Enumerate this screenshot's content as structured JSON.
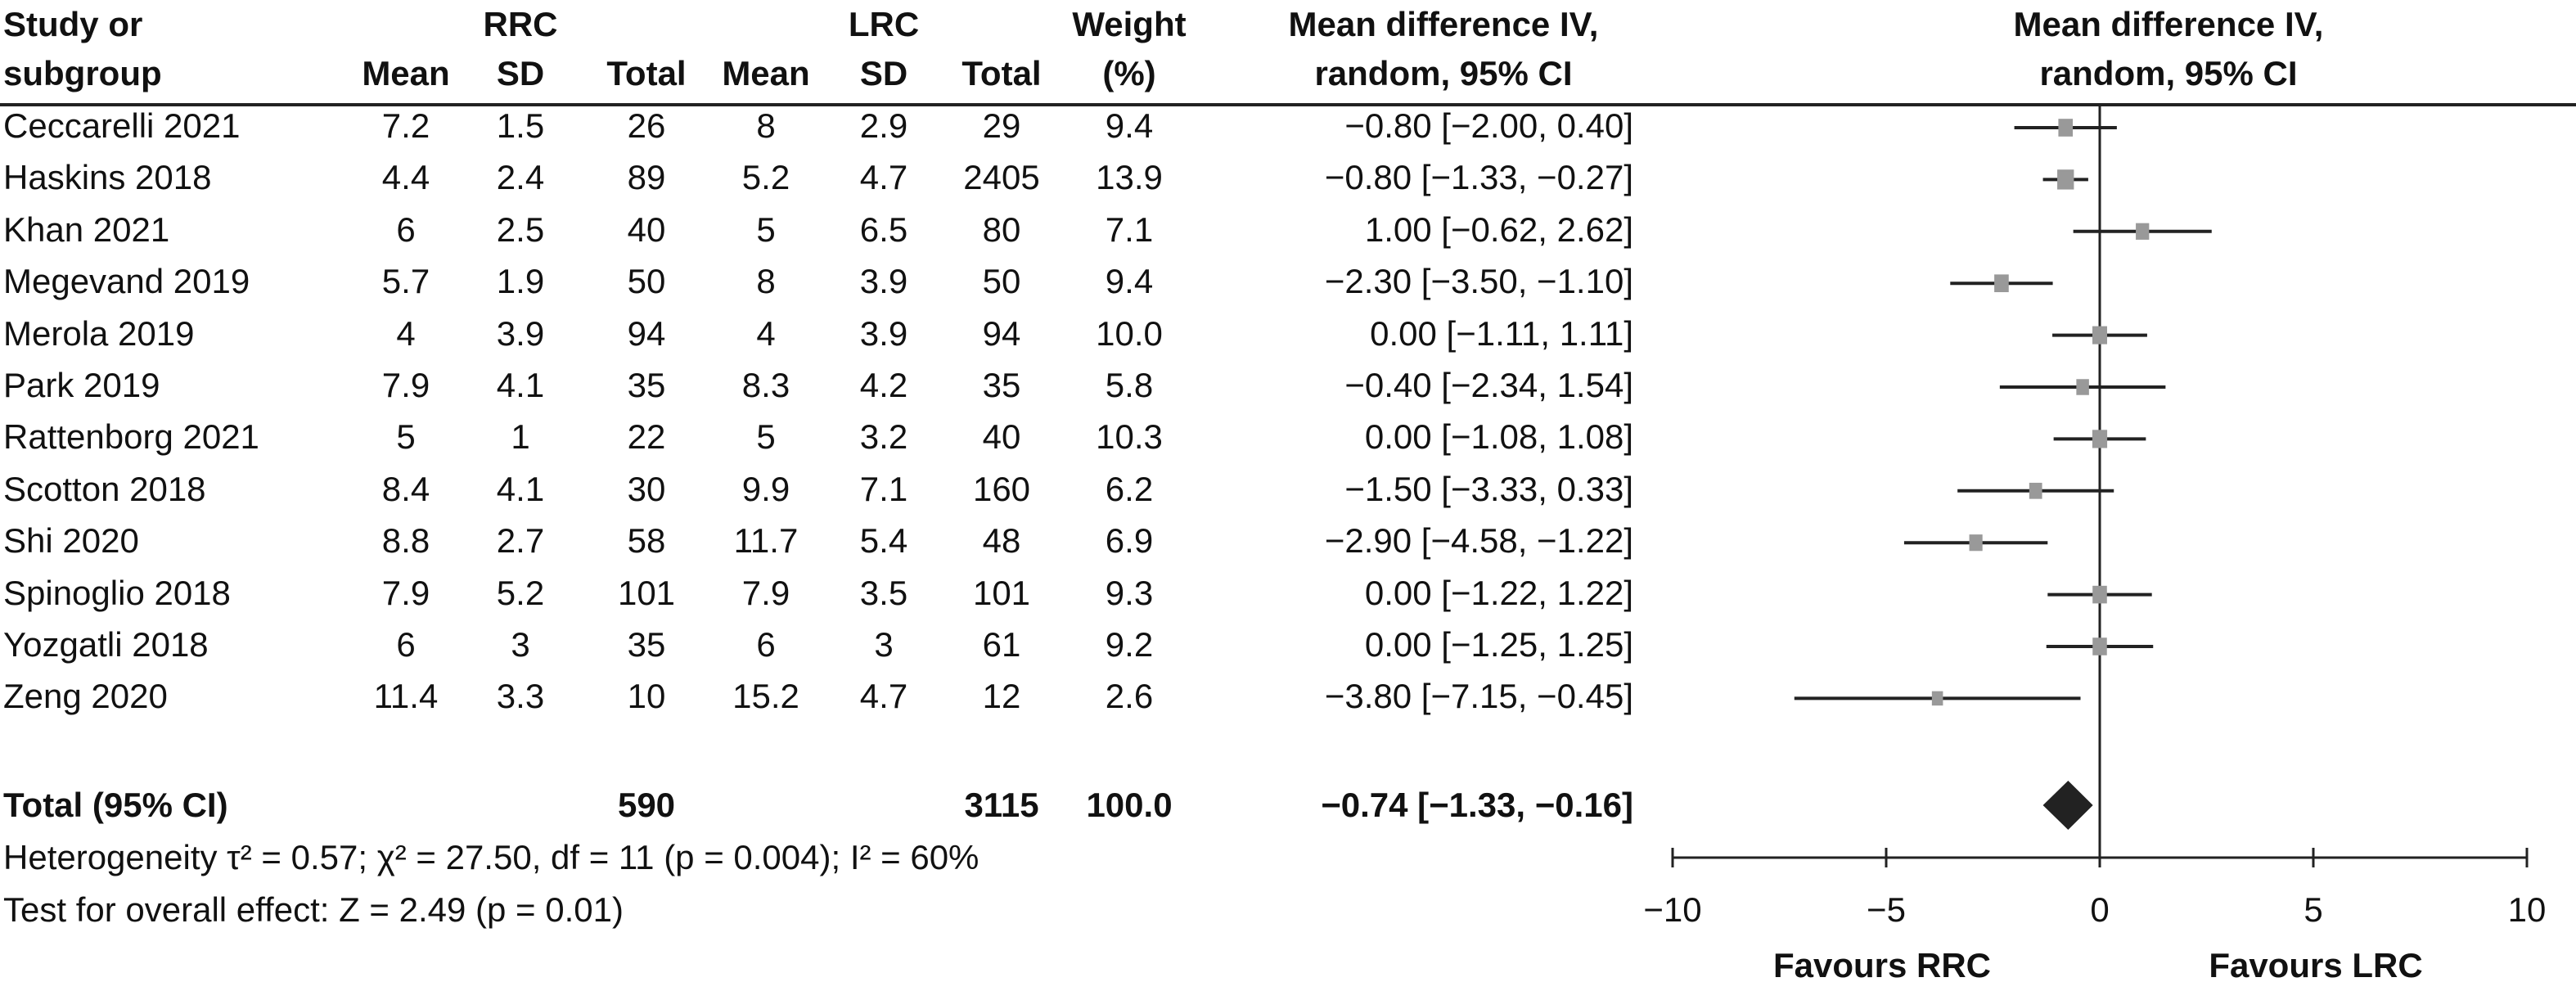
{
  "header": {
    "study_1": "Study or",
    "study_2": "subgroup",
    "rrc": "RRC",
    "lrc": "LRC",
    "mean": "Mean",
    "sd": "SD",
    "total": "Total",
    "weight_1": "Weight",
    "weight_2": "(%)",
    "md_1": "Mean difference IV,",
    "md_2": "random, 95% CI",
    "plot_1": "Mean difference IV,",
    "plot_2": "random, 95% CI"
  },
  "studies": [
    {
      "name": "Ceccarelli 2021",
      "rrc_mean": "7.2",
      "rrc_sd": "1.5",
      "rrc_total": "26",
      "lrc_mean": "8",
      "lrc_sd": "2.9",
      "lrc_total": "29",
      "weight": "9.4",
      "md_text": "−0.80 [−2.00, 0.40]"
    },
    {
      "name": "Haskins 2018",
      "rrc_mean": "4.4",
      "rrc_sd": "2.4",
      "rrc_total": "89",
      "lrc_mean": "5.2",
      "lrc_sd": "4.7",
      "lrc_total": "2405",
      "weight": "13.9",
      "md_text": "−0.80 [−1.33, −0.27]"
    },
    {
      "name": "Khan 2021",
      "rrc_mean": "6",
      "rrc_sd": "2.5",
      "rrc_total": "40",
      "lrc_mean": "5",
      "lrc_sd": "6.5",
      "lrc_total": "80",
      "weight": "7.1",
      "md_text": "1.00 [−0.62, 2.62]"
    },
    {
      "name": "Megevand 2019",
      "rrc_mean": "5.7",
      "rrc_sd": "1.9",
      "rrc_total": "50",
      "lrc_mean": "8",
      "lrc_sd": "3.9",
      "lrc_total": "50",
      "weight": "9.4",
      "md_text": "−2.30 [−3.50, −1.10]"
    },
    {
      "name": "Merola 2019",
      "rrc_mean": "4",
      "rrc_sd": "3.9",
      "rrc_total": "94",
      "lrc_mean": "4",
      "lrc_sd": "3.9",
      "lrc_total": "94",
      "weight": "10.0",
      "md_text": "0.00 [−1.11, 1.11]"
    },
    {
      "name": "Park 2019",
      "rrc_mean": "7.9",
      "rrc_sd": "4.1",
      "rrc_total": "35",
      "lrc_mean": "8.3",
      "lrc_sd": "4.2",
      "lrc_total": "35",
      "weight": "5.8",
      "md_text": "−0.40 [−2.34, 1.54]"
    },
    {
      "name": "Rattenborg 2021",
      "rrc_mean": "5",
      "rrc_sd": "1",
      "rrc_total": "22",
      "lrc_mean": "5",
      "lrc_sd": "3.2",
      "lrc_total": "40",
      "weight": "10.3",
      "md_text": "0.00 [−1.08, 1.08]"
    },
    {
      "name": "Scotton 2018",
      "rrc_mean": "8.4",
      "rrc_sd": "4.1",
      "rrc_total": "30",
      "lrc_mean": "9.9",
      "lrc_sd": "7.1",
      "lrc_total": "160",
      "weight": "6.2",
      "md_text": "−1.50 [−3.33, 0.33]"
    },
    {
      "name": "Shi 2020",
      "rrc_mean": "8.8",
      "rrc_sd": "2.7",
      "rrc_total": "58",
      "lrc_mean": "11.7",
      "lrc_sd": "5.4",
      "lrc_total": "48",
      "weight": "6.9",
      "md_text": "−2.90 [−4.58, −1.22]"
    },
    {
      "name": "Spinoglio 2018",
      "rrc_mean": "7.9",
      "rrc_sd": "5.2",
      "rrc_total": "101",
      "lrc_mean": "7.9",
      "lrc_sd": "3.5",
      "lrc_total": "101",
      "weight": "9.3",
      "md_text": "0.00 [−1.22, 1.22]"
    },
    {
      "name": "Yozgatli 2018",
      "rrc_mean": "6",
      "rrc_sd": "3",
      "rrc_total": "35",
      "lrc_mean": "6",
      "lrc_sd": "3",
      "lrc_total": "61",
      "weight": "9.2",
      "md_text": "0.00 [−1.25, 1.25]"
    },
    {
      "name": "Zeng 2020",
      "rrc_mean": "11.4",
      "rrc_sd": "3.3",
      "rrc_total": "10",
      "lrc_mean": "15.2",
      "lrc_sd": "4.7",
      "lrc_total": "12",
      "weight": "2.6",
      "md_text": "−3.80 [−7.15, −0.45]"
    }
  ],
  "total": {
    "label": "Total (95% CI)",
    "rrc_total": "590",
    "lrc_total": "3115",
    "weight": "100.0",
    "md_text": "−0.74 [−1.33, −0.16]"
  },
  "heterogeneity": "Heterogeneity τ² = 0.57; χ² = 27.50, df = 11 (p = 0.004); I² = 60%",
  "overall_effect": "Test for overall effect: Z = 2.49 (p = 0.01)",
  "chart_data": {
    "type": "forest",
    "xlim": [
      -10,
      10
    ],
    "xticks": [
      -10,
      -5,
      0,
      5,
      10
    ],
    "xtick_labels": [
      "−10",
      "−5",
      "0",
      "5",
      "10"
    ],
    "left_label": "Favours RRC",
    "right_label": "Favours LRC",
    "study_color": "#999999",
    "summary_color": "#222222",
    "points": [
      {
        "md": -0.8,
        "lo": -2.0,
        "hi": 0.4,
        "weight": 9.4
      },
      {
        "md": -0.8,
        "lo": -1.33,
        "hi": -0.27,
        "weight": 13.9
      },
      {
        "md": 1.0,
        "lo": -0.62,
        "hi": 2.62,
        "weight": 7.1
      },
      {
        "md": -2.3,
        "lo": -3.5,
        "hi": -1.1,
        "weight": 9.4
      },
      {
        "md": 0.0,
        "lo": -1.11,
        "hi": 1.11,
        "weight": 10.0
      },
      {
        "md": -0.4,
        "lo": -2.34,
        "hi": 1.54,
        "weight": 5.8
      },
      {
        "md": 0.0,
        "lo": -1.08,
        "hi": 1.08,
        "weight": 10.3
      },
      {
        "md": -1.5,
        "lo": -3.33,
        "hi": 0.33,
        "weight": 6.2
      },
      {
        "md": -2.9,
        "lo": -4.58,
        "hi": -1.22,
        "weight": 6.9
      },
      {
        "md": 0.0,
        "lo": -1.22,
        "hi": 1.22,
        "weight": 9.3
      },
      {
        "md": 0.0,
        "lo": -1.25,
        "hi": 1.25,
        "weight": 9.2
      },
      {
        "md": -3.8,
        "lo": -7.15,
        "hi": -0.45,
        "weight": 2.6
      }
    ],
    "summary": {
      "md": -0.74,
      "lo": -1.33,
      "hi": -0.16
    }
  }
}
